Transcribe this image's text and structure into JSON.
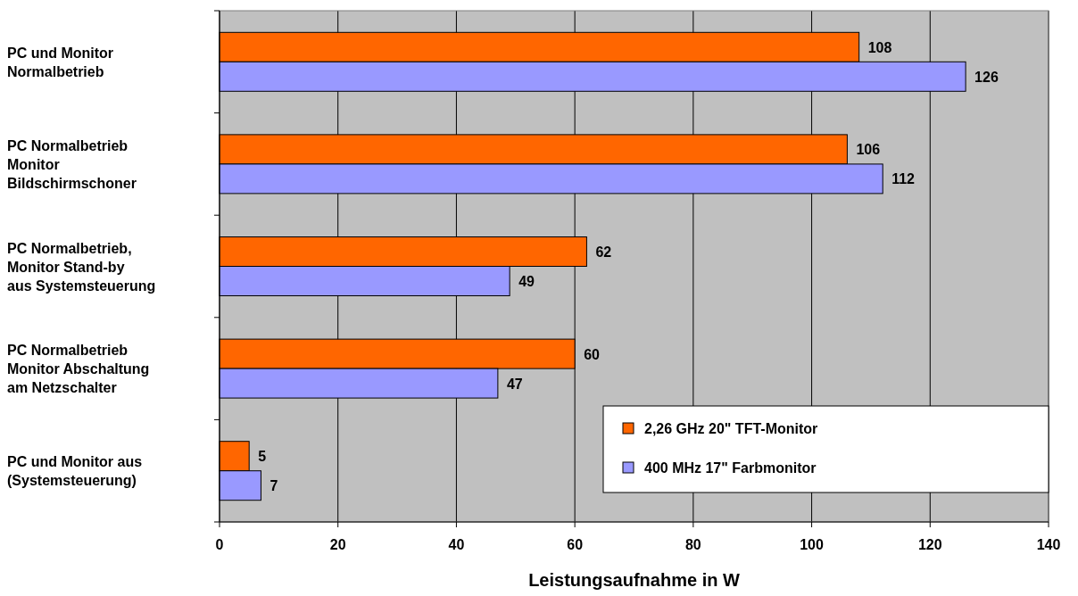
{
  "chart_data": {
    "type": "bar",
    "orientation": "horizontal",
    "xlabel": "Leistungsaufnahme in W",
    "categories": [
      "PC und Monitor\nNormalbetrieb",
      "PC Normalbetrieb\nMonitor\nBildschirmschoner",
      "PC Normalbetrieb,\nMonitor Stand-by\naus Systemsteuerung",
      "PC Normalbetrieb\nMonitor Abschaltung\nam Netzschalter",
      "PC und Monitor aus\n(Systemsteuerung)"
    ],
    "series": [
      {
        "name": "2,26 GHz 20\" TFT-Monitor",
        "color": "#ff6600",
        "values": [
          108,
          106,
          62,
          60,
          5
        ]
      },
      {
        "name": "400 MHz 17\" Farbmonitor",
        "color": "#9999ff",
        "values": [
          126,
          112,
          49,
          47,
          7
        ]
      }
    ],
    "xlim": [
      0,
      140
    ],
    "xticks": [
      0,
      20,
      40,
      60,
      80,
      100,
      120,
      140
    ],
    "grid": "x",
    "legend": "bottom right",
    "data_labels": true
  }
}
